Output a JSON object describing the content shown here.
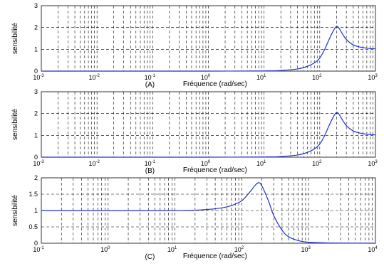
{
  "chart_data": [
    {
      "type": "line",
      "panel_label": "(A)",
      "xlabel": "Fréquence (rad/sec)",
      "ylabel": "sensibilité",
      "xscale": "log",
      "xlim": [
        0.001,
        1000
      ],
      "ylim": [
        0,
        3
      ],
      "yticks": [
        0,
        1,
        2,
        3
      ],
      "grid": true,
      "line_color": "#1f2fd0",
      "x": [
        0.001,
        0.01,
        0.1,
        1,
        10,
        20,
        40,
        60,
        80,
        100,
        120,
        150,
        180,
        200,
        220,
        250,
        300,
        400,
        500,
        700,
        1000
      ],
      "y": [
        0.0,
        0.0,
        0.0,
        0.0,
        0.01,
        0.03,
        0.1,
        0.22,
        0.38,
        0.6,
        0.95,
        1.5,
        1.9,
        2.05,
        1.98,
        1.75,
        1.45,
        1.2,
        1.12,
        1.05,
        1.02
      ]
    },
    {
      "type": "line",
      "panel_label": "(B)",
      "xlabel": "Fréquence (rad/sec)",
      "ylabel": "sensibilité",
      "xscale": "log",
      "xlim": [
        0.001,
        1000
      ],
      "ylim": [
        0,
        3
      ],
      "yticks": [
        0,
        1,
        2,
        3
      ],
      "grid": true,
      "line_color": "#1f2fd0",
      "x": [
        0.001,
        0.01,
        0.1,
        1,
        10,
        20,
        40,
        60,
        80,
        100,
        120,
        150,
        180,
        200,
        220,
        250,
        300,
        400,
        500,
        700,
        1000
      ],
      "y": [
        0.0,
        0.0,
        0.0,
        0.0,
        0.01,
        0.03,
        0.1,
        0.22,
        0.38,
        0.6,
        0.95,
        1.5,
        1.9,
        2.05,
        1.98,
        1.75,
        1.45,
        1.2,
        1.12,
        1.05,
        1.02
      ]
    },
    {
      "type": "line",
      "panel_label": "(C)",
      "xlabel": "Fréquence (rad/sec)",
      "ylabel": "sensibilité",
      "xscale": "log",
      "xlim": [
        0.1,
        10000
      ],
      "ylim": [
        0,
        2
      ],
      "yticks": [
        0,
        0.5,
        1,
        1.5,
        2
      ],
      "grid": true,
      "line_color": "#1f2fd0",
      "x": [
        0.1,
        1,
        10,
        20,
        30,
        50,
        70,
        100,
        130,
        160,
        180,
        200,
        250,
        300,
        400,
        500,
        700,
        1000,
        2000,
        10000
      ],
      "y": [
        1.0,
        1.0,
        1.0,
        1.01,
        1.03,
        1.08,
        1.15,
        1.3,
        1.55,
        1.78,
        1.85,
        1.75,
        1.3,
        0.85,
        0.4,
        0.2,
        0.08,
        0.03,
        0.01,
        0.0
      ]
    }
  ]
}
